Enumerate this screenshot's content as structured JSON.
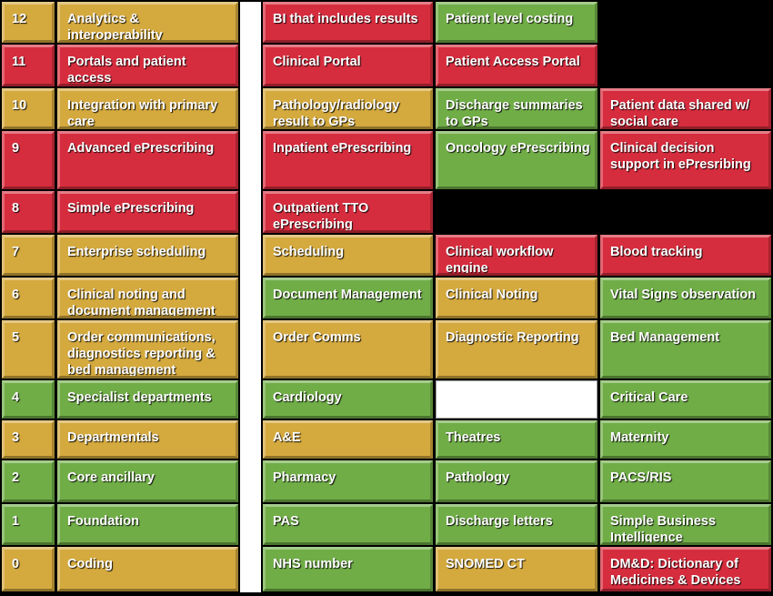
{
  "colors": {
    "green": "#70ad47",
    "amber": "#d4a93e",
    "red": "#d62d3e",
    "white": "#ffffff",
    "background": "#000000"
  },
  "rows": [
    {
      "level": "12",
      "label": "Analytics & interoperability",
      "label_color": "amber",
      "level_color": "amber",
      "items": [
        {
          "text": "BI that includes results",
          "color": "red"
        },
        {
          "text": "Patient level costing",
          "color": "green"
        }
      ]
    },
    {
      "level": "11",
      "label": "Portals and patient access",
      "label_color": "red",
      "level_color": "red",
      "items": [
        {
          "text": "Clinical Portal",
          "color": "red"
        },
        {
          "text": "Patient Access Portal",
          "color": "red"
        }
      ]
    },
    {
      "level": "10",
      "label": "Integration with primary care",
      "label_color": "amber",
      "level_color": "amber",
      "items": [
        {
          "text": "Pathology/radiology result to GPs",
          "color": "amber"
        },
        {
          "text": "Discharge summaries to GPs",
          "color": "green"
        },
        {
          "text": "Patient data shared w/ social care",
          "color": "red"
        }
      ]
    },
    {
      "level": "9",
      "label": "Advanced ePrescribing",
      "label_color": "red",
      "level_color": "red",
      "items": [
        {
          "text": "Inpatient ePrescribing",
          "color": "red"
        },
        {
          "text": "Oncology ePrescribing",
          "color": "green"
        },
        {
          "text": "Clinical decision support  in ePresribing",
          "color": "red"
        }
      ]
    },
    {
      "level": "8",
      "label": "Simple ePrescribing",
      "label_color": "red",
      "level_color": "red",
      "items": [
        {
          "text": "Outpatient TTO ePrescribing",
          "color": "red"
        }
      ]
    },
    {
      "level": "7",
      "label": "Enterprise scheduling",
      "label_color": "amber",
      "level_color": "amber",
      "items": [
        {
          "text": "Scheduling",
          "color": "amber"
        },
        {
          "text": "Clinical workflow engine",
          "color": "red"
        },
        {
          "text": "Blood tracking",
          "color": "red"
        }
      ]
    },
    {
      "level": "6",
      "label": "Clinical noting and document management",
      "label_color": "amber",
      "level_color": "amber",
      "items": [
        {
          "text": "Document Management",
          "color": "green"
        },
        {
          "text": "Clinical Noting",
          "color": "amber"
        },
        {
          "text": "Vital Signs observation",
          "color": "green"
        }
      ]
    },
    {
      "level": "5",
      "label": "Order communications, diagnostics reporting & bed management",
      "label_color": "amber",
      "level_color": "amber",
      "items": [
        {
          "text": "Order Comms",
          "color": "amber"
        },
        {
          "text": "Diagnostic Reporting",
          "color": "amber"
        },
        {
          "text": "Bed Management",
          "color": "green"
        }
      ]
    },
    {
      "level": "4",
      "label": "Specialist departments",
      "label_color": "green",
      "level_color": "green",
      "items": [
        {
          "text": "Cardiology",
          "color": "green"
        },
        {
          "text": "",
          "color": "white"
        },
        {
          "text": "Critical Care",
          "color": "green"
        }
      ]
    },
    {
      "level": "3",
      "label": "Departmentals",
      "label_color": "amber",
      "level_color": "amber",
      "items": [
        {
          "text": "A&E",
          "color": "amber"
        },
        {
          "text": "Theatres",
          "color": "green"
        },
        {
          "text": "Maternity",
          "color": "green"
        }
      ]
    },
    {
      "level": "2",
      "label": "Core ancillary",
      "label_color": "green",
      "level_color": "green",
      "items": [
        {
          "text": "Pharmacy",
          "color": "green"
        },
        {
          "text": "Pathology",
          "color": "green"
        },
        {
          "text": "PACS/RIS",
          "color": "green"
        }
      ]
    },
    {
      "level": "1",
      "label": "Foundation",
      "label_color": "green",
      "level_color": "green",
      "items": [
        {
          "text": "PAS",
          "color": "green"
        },
        {
          "text": "Discharge letters",
          "color": "green"
        },
        {
          "text": "Simple Business Intelligence",
          "color": "green"
        }
      ]
    },
    {
      "level": "0",
      "label": "Coding",
      "label_color": "amber",
      "level_color": "amber",
      "items": [
        {
          "text": "NHS number",
          "color": "green"
        },
        {
          "text": "SNOMED CT",
          "color": "amber"
        },
        {
          "text": "DM&D: Dictionary of Medicines & Devices",
          "color": "red"
        }
      ]
    }
  ]
}
